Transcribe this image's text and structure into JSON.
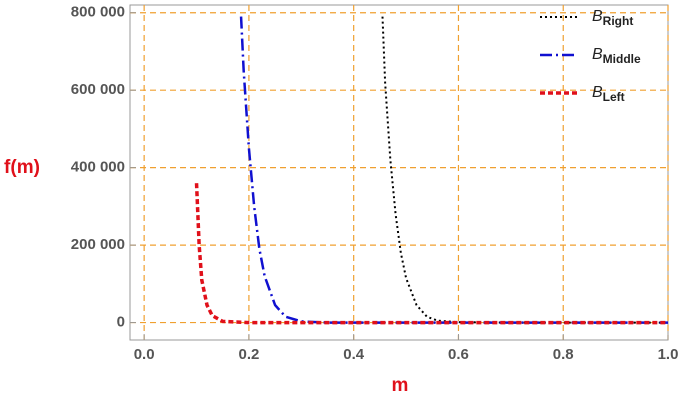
{
  "chart_data": {
    "type": "line",
    "xlabel": "m",
    "ylabel": "f(m)",
    "xlim": [
      -0.027,
      1.0
    ],
    "ylim": [
      -45000,
      820000
    ],
    "xticks": [
      {
        "value": 0,
        "label": "0.0"
      },
      0.2,
      0.4,
      0.6,
      0.8,
      {
        "value": 1,
        "label": "1.0"
      }
    ],
    "yticks": [
      0,
      {
        "value": 200000,
        "label": "200 000"
      },
      {
        "value": 400000,
        "label": "400 000"
      },
      {
        "value": 600000,
        "label": "600 000"
      },
      {
        "value": 800000,
        "label": "800 000"
      }
    ],
    "grid": true,
    "grid_color": "#f0a030",
    "legend": "upper right",
    "series": [
      {
        "name": "B",
        "subscript": "Right",
        "color": "#000000",
        "dash": "2,3",
        "width": 2,
        "x": [
          0.455,
          0.46,
          0.47,
          0.48,
          0.49,
          0.5,
          0.52,
          0.54,
          0.56,
          0.6,
          0.7,
          1.0
        ],
        "values": [
          790000,
          620000,
          420000,
          280000,
          180000,
          115000,
          45000,
          15000,
          5000,
          1000,
          0,
          0
        ]
      },
      {
        "name": "B",
        "subscript": "Middle",
        "color": "#1010d0",
        "dash": "12,4,2,4",
        "width": 2.5,
        "x": [
          0.185,
          0.19,
          0.2,
          0.21,
          0.22,
          0.23,
          0.25,
          0.27,
          0.3,
          0.35,
          1.0
        ],
        "values": [
          790000,
          650000,
          450000,
          300000,
          190000,
          120000,
          45000,
          15000,
          3000,
          0,
          0
        ]
      },
      {
        "name": "B",
        "subscript": "Left",
        "color": "#e0101a",
        "dash": "5,3",
        "width": 3.5,
        "x": [
          0.1,
          0.105,
          0.11,
          0.12,
          0.13,
          0.15,
          0.2,
          1.0
        ],
        "values": [
          360000,
          200000,
          110000,
          45000,
          18000,
          3000,
          0,
          0
        ]
      }
    ]
  }
}
